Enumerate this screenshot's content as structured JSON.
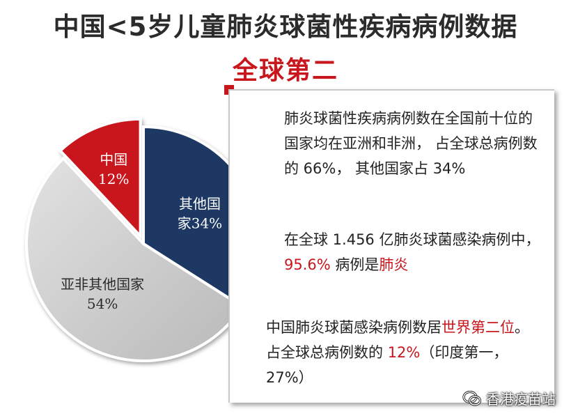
{
  "title": "中国<5岁儿童肺炎球菌性疾病病例数据",
  "subtitle": "全球第二",
  "colors": {
    "china": "#c8161d",
    "others": "#1f3864",
    "asia_africa_others": "#c7c7c7",
    "highlight": "#c8161d"
  },
  "chart_data": {
    "type": "pie",
    "slices": [
      {
        "label": "其他国家",
        "value_label": "34%",
        "value": 34,
        "color": "#1f3864"
      },
      {
        "label": "亚非其他国家",
        "value_label": "54%",
        "value": 54,
        "color": "#c7c7c7"
      },
      {
        "label": "中国",
        "value_label": "12%",
        "value": 12,
        "color": "#c8161d",
        "exploded": true
      }
    ]
  },
  "info": {
    "p1": "肺炎球菌性疾病病例数在全国前十位的国家均在亚洲和非洲， 占全球总病例数的 66%， 其他国家占 34%",
    "p2_a": "在全球 1.456 亿肺炎球菌感染病例中， ",
    "p2_b": "95.6%",
    "p2_c": " 病例是",
    "p2_d": "肺炎",
    "p3_a": "中国肺炎球菌感染病例数居",
    "p3_b": "世界第二位",
    "p3_c": "。 占全球总病例数的 ",
    "p3_d": "12%",
    "p3_e": "（印度第一， 27%）"
  },
  "watermark": {
    "icon": "wechat-icon",
    "text": "香港疫苗站"
  }
}
